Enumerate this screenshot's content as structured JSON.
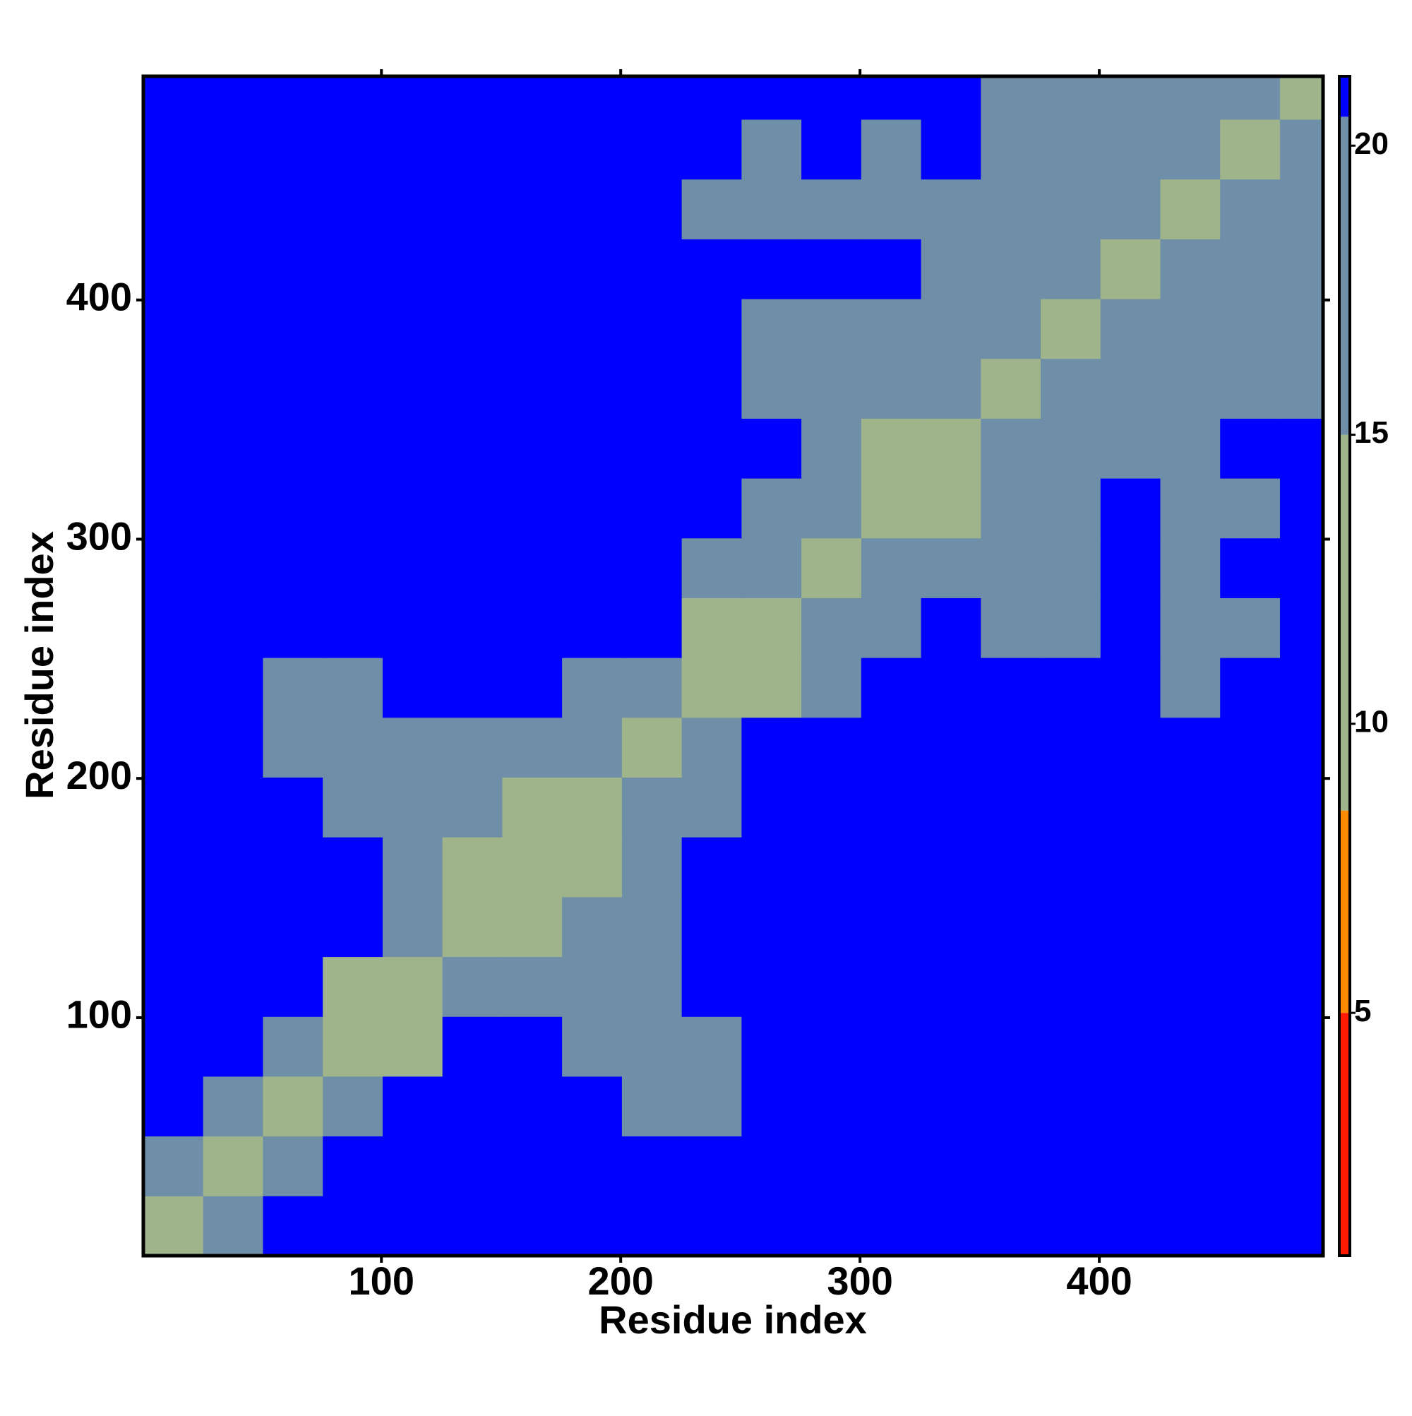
{
  "chart_data": {
    "type": "heatmap",
    "xlabel": "Residue index",
    "ylabel": "Residue index",
    "bins": [
      0.5,
      25.5,
      50.5,
      75.5,
      100.5,
      125.5,
      150.5,
      175.5,
      200.5,
      225.5,
      250.5,
      275.5,
      300.5,
      325.5,
      350.5,
      375.5,
      400.5,
      425.5,
      450.5,
      475.5,
      493.5
    ],
    "xlim": [
      0.5,
      493.5
    ],
    "ylim": [
      0.5,
      493.5
    ],
    "xticks": [
      100,
      200,
      300,
      400
    ],
    "yticks": [
      100,
      200,
      300,
      400
    ],
    "z": [
      [
        13,
        19,
        21,
        21,
        21,
        21,
        21,
        21,
        21,
        21,
        21,
        21,
        21,
        21,
        21,
        21,
        21,
        21,
        21,
        21
      ],
      [
        19,
        12,
        19,
        21,
        21,
        21,
        21,
        21,
        21,
        21,
        21,
        21,
        21,
        21,
        21,
        21,
        21,
        21,
        21,
        21
      ],
      [
        21,
        19,
        11,
        15,
        21,
        21,
        21,
        21,
        18,
        17,
        21,
        21,
        21,
        21,
        21,
        21,
        21,
        21,
        21,
        21
      ],
      [
        21,
        21,
        15,
        9,
        13,
        21,
        21,
        19,
        18,
        19,
        21,
        21,
        21,
        21,
        21,
        21,
        21,
        21,
        21,
        21
      ],
      [
        21,
        21,
        21,
        13,
        10,
        17,
        18,
        18,
        20,
        21,
        21,
        21,
        21,
        21,
        21,
        21,
        21,
        21,
        21,
        21
      ],
      [
        21,
        21,
        21,
        21,
        17,
        10,
        13,
        16,
        19,
        21,
        21,
        21,
        21,
        21,
        21,
        21,
        21,
        21,
        21,
        21
      ],
      [
        21,
        21,
        21,
        21,
        18,
        13,
        9,
        13,
        18,
        21,
        21,
        21,
        21,
        21,
        21,
        21,
        21,
        21,
        21,
        21
      ],
      [
        21,
        21,
        21,
        19,
        18,
        16,
        13,
        10,
        16,
        16,
        21,
        21,
        21,
        21,
        21,
        21,
        21,
        21,
        21,
        21
      ],
      [
        21,
        21,
        18,
        18,
        20,
        19,
        18,
        16,
        11,
        15,
        21,
        21,
        21,
        21,
        21,
        21,
        21,
        21,
        21,
        21
      ],
      [
        21,
        21,
        17,
        19,
        21,
        21,
        21,
        16,
        15,
        10,
        13,
        17,
        21,
        21,
        21,
        21,
        21,
        18,
        21,
        21
      ],
      [
        21,
        21,
        21,
        21,
        21,
        21,
        21,
        21,
        21,
        13,
        10,
        17,
        19,
        21,
        17,
        18,
        21,
        18,
        19,
        21
      ],
      [
        21,
        21,
        21,
        21,
        21,
        21,
        21,
        21,
        21,
        17,
        17,
        12,
        16,
        18,
        20,
        19,
        21,
        19,
        21,
        21
      ],
      [
        21,
        21,
        21,
        21,
        21,
        21,
        21,
        21,
        21,
        21,
        19,
        16,
        10,
        14,
        19,
        20,
        21,
        20,
        20,
        21
      ],
      [
        21,
        21,
        21,
        21,
        21,
        21,
        21,
        21,
        21,
        21,
        21,
        18,
        14,
        11,
        18,
        19,
        20,
        20,
        21,
        21
      ],
      [
        21,
        21,
        21,
        21,
        21,
        21,
        21,
        21,
        21,
        21,
        17,
        20,
        19,
        18,
        13,
        19,
        16,
        16,
        19,
        20
      ],
      [
        21,
        21,
        21,
        21,
        21,
        21,
        21,
        21,
        21,
        21,
        18,
        19,
        20,
        19,
        19,
        13,
        17,
        17,
        18,
        19
      ],
      [
        21,
        21,
        21,
        21,
        21,
        21,
        21,
        21,
        21,
        21,
        21,
        21,
        21,
        20,
        16,
        17,
        12,
        16,
        17,
        16
      ],
      [
        21,
        21,
        21,
        21,
        21,
        21,
        21,
        21,
        21,
        18,
        18,
        19,
        20,
        20,
        16,
        17,
        16,
        12,
        16,
        17
      ],
      [
        21,
        21,
        21,
        21,
        21,
        21,
        21,
        21,
        21,
        21,
        19,
        21,
        20,
        21,
        19,
        18,
        17,
        16,
        12,
        17
      ],
      [
        21,
        21,
        21,
        21,
        21,
        21,
        21,
        21,
        21,
        21,
        21,
        21,
        21,
        21,
        20,
        19,
        16,
        17,
        17,
        13
      ]
    ],
    "zlim": [
      0.8,
      21.2
    ],
    "zticks": [
      5,
      10,
      15,
      20
    ],
    "color_bounds": [
      0.8,
      5,
      8.5,
      15,
      20.5,
      21.2
    ],
    "colors": [
      "#ff1a00",
      "#ff8c00",
      "#9fb48a",
      "#6f8fa8",
      "#0000ff"
    ]
  }
}
